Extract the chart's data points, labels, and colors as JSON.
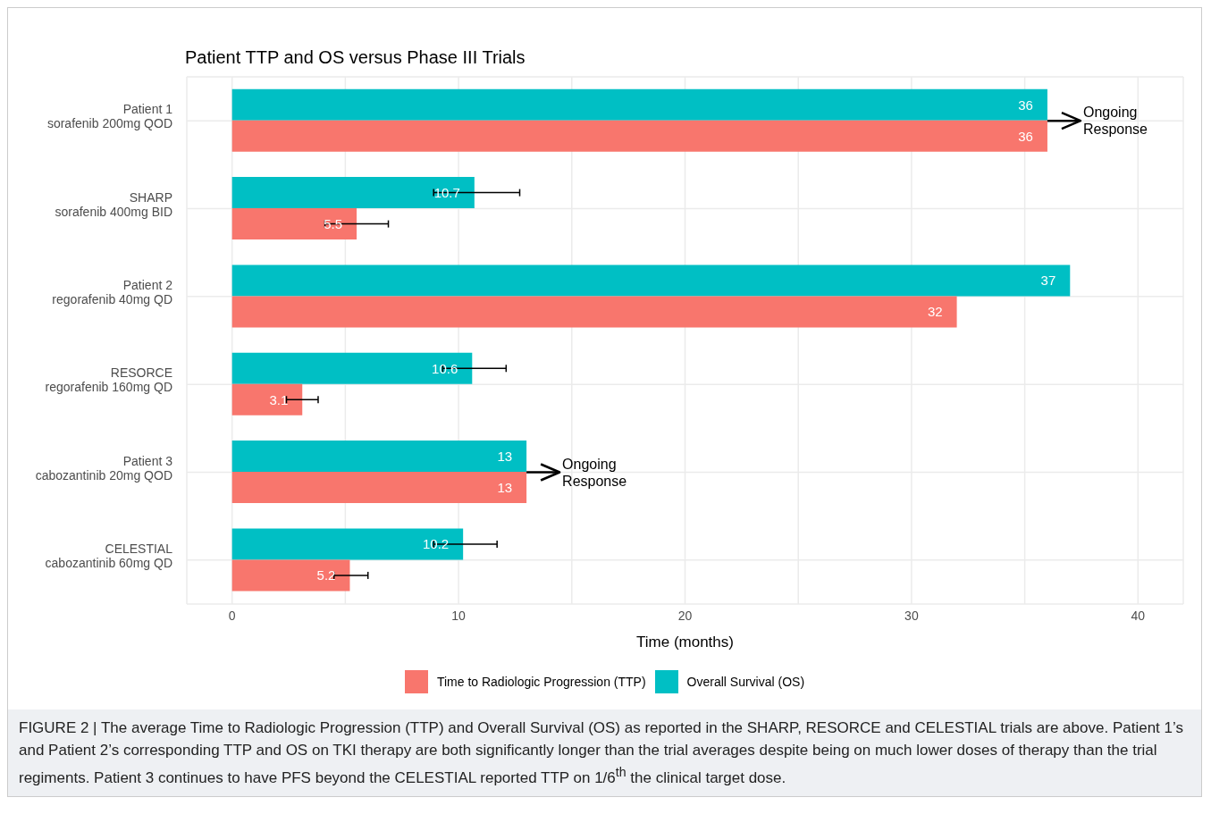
{
  "chart_data": {
    "type": "bar",
    "orientation": "horizontal",
    "title": "Patient TTP and OS versus Phase III Trials",
    "xlabel": "Time (months)",
    "categories": [
      "Patient 1\nsorafenib 200mg QOD",
      "SHARP\nsorafenib 400mg BID",
      "Patient 2\nregorafenib 40mg QD",
      "RESORCE\nregorafenib 160mg QD",
      "Patient 3\ncabozantinib 20mg QOD",
      "CELESTIAL\ncabozantinib 60mg QD"
    ],
    "series": [
      {
        "name": "Time to Radiologic Progression (TTP)",
        "color": "#f8766d",
        "values": [
          36,
          5.5,
          32,
          3.1,
          13,
          5.2
        ],
        "errors": [
          null,
          [
            4.1,
            6.9
          ],
          null,
          [
            2.4,
            3.8
          ],
          null,
          [
            4.5,
            6.0
          ]
        ]
      },
      {
        "name": "Overall Survival (OS)",
        "color": "#00bfc4",
        "values": [
          36,
          10.7,
          37,
          10.6,
          13,
          10.2
        ],
        "errors": [
          null,
          [
            8.9,
            12.7
          ],
          null,
          [
            9.3,
            12.1
          ],
          null,
          [
            8.9,
            11.7
          ]
        ]
      }
    ],
    "xlim": [
      -2,
      42
    ],
    "xticks": [
      0,
      {
        "value": 5,
        "label": null
      },
      10,
      {
        "value": 15,
        "label": null
      },
      20,
      {
        "value": 25,
        "label": null
      },
      30,
      {
        "value": 35,
        "label": null
      },
      40
    ],
    "grid": true,
    "legend": "bottom",
    "data_labels": true,
    "annotations": [
      {
        "text": "Ongoing\nResponse",
        "x": 36,
        "y": "Patient 1\nsorafenib 200mg QOD"
      },
      {
        "text": "Ongoing\nResponse",
        "x": 13,
        "y": "Patient 3\ncabozantinib 20mg QOD"
      },
      "FIGURE 2 | The average Time to Radiologic Progression (TTP) and Overall Survival (OS) as reported in the SHARP, RESORCE and CELESTIAL trials are above. Patient 1’s and Patient 2’s corresponding TTP and OS on TKI therapy are both significantly longer than the trial averages despite being on much lower doses of therapy than the trial regiments. Patient 3 continues to have PFS beyond the CELESTIAL reported TTP on 1/6$^{th}$ the clinical target dose."
    ]
  }
}
